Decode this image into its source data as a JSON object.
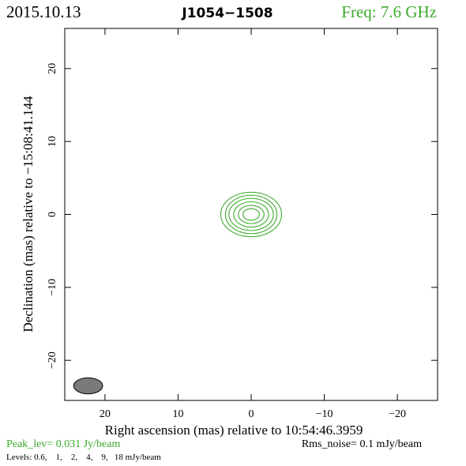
{
  "header": {
    "date": "2015.10.13",
    "source": "J1054−1508",
    "freq": "Freq: 7.6 GHz"
  },
  "footer": {
    "peak": "Peak_lev=  0.031 Jy/beam",
    "rms": "Rms_noise=   0.1 mJy/beam",
    "levels": "Levels: 0.6,    1,    2,    4,    9,   18 mJy/beam"
  },
  "colors": {
    "contour": "#3cab2c",
    "freq_text": "#3cab2c",
    "peak_text": "#3cab2c",
    "beam_fill": "#7a7a7a",
    "axis": "#000000"
  },
  "chart_data": {
    "type": "contour",
    "xlabel": "Right ascension (mas) relative to 10:54:46.3959",
    "ylabel": "Declination (mas) relative to −15:08:41.144",
    "xlim": [
      25.5,
      -25.5
    ],
    "ylim": [
      -25.5,
      25.5
    ],
    "xticks": [
      20,
      10,
      0,
      -10,
      -20
    ],
    "yticks": [
      -20,
      -10,
      0,
      10,
      20
    ],
    "xtick_labels": [
      "20",
      "10",
      "0",
      "−10",
      "−20"
    ],
    "ytick_labels": [
      "−20",
      "−10",
      "0",
      "10",
      "20"
    ],
    "grid": false,
    "contour_levels_mJy": [
      0.6,
      1,
      2,
      4,
      9,
      18
    ],
    "source_center": [
      0,
      0
    ],
    "contours": [
      {
        "level": 0.6,
        "semi_major": 2.9,
        "semi_minor": 1.3
      },
      {
        "level": 1,
        "semi_major": 2.5,
        "semi_minor": 1.1
      },
      {
        "level": 2,
        "semi_major": 2.1,
        "semi_minor": 0.95
      },
      {
        "level": 4,
        "semi_major": 1.65,
        "semi_minor": 0.75
      },
      {
        "level": 9,
        "semi_major": 1.2,
        "semi_minor": 0.55
      },
      {
        "level": 18,
        "semi_major": 0.75,
        "semi_minor": 0.35
      }
    ],
    "beam": {
      "x": 22.3,
      "y": -23.5,
      "semi_major": 1.1,
      "semi_minor": 0.45,
      "pa_deg": 0
    }
  }
}
